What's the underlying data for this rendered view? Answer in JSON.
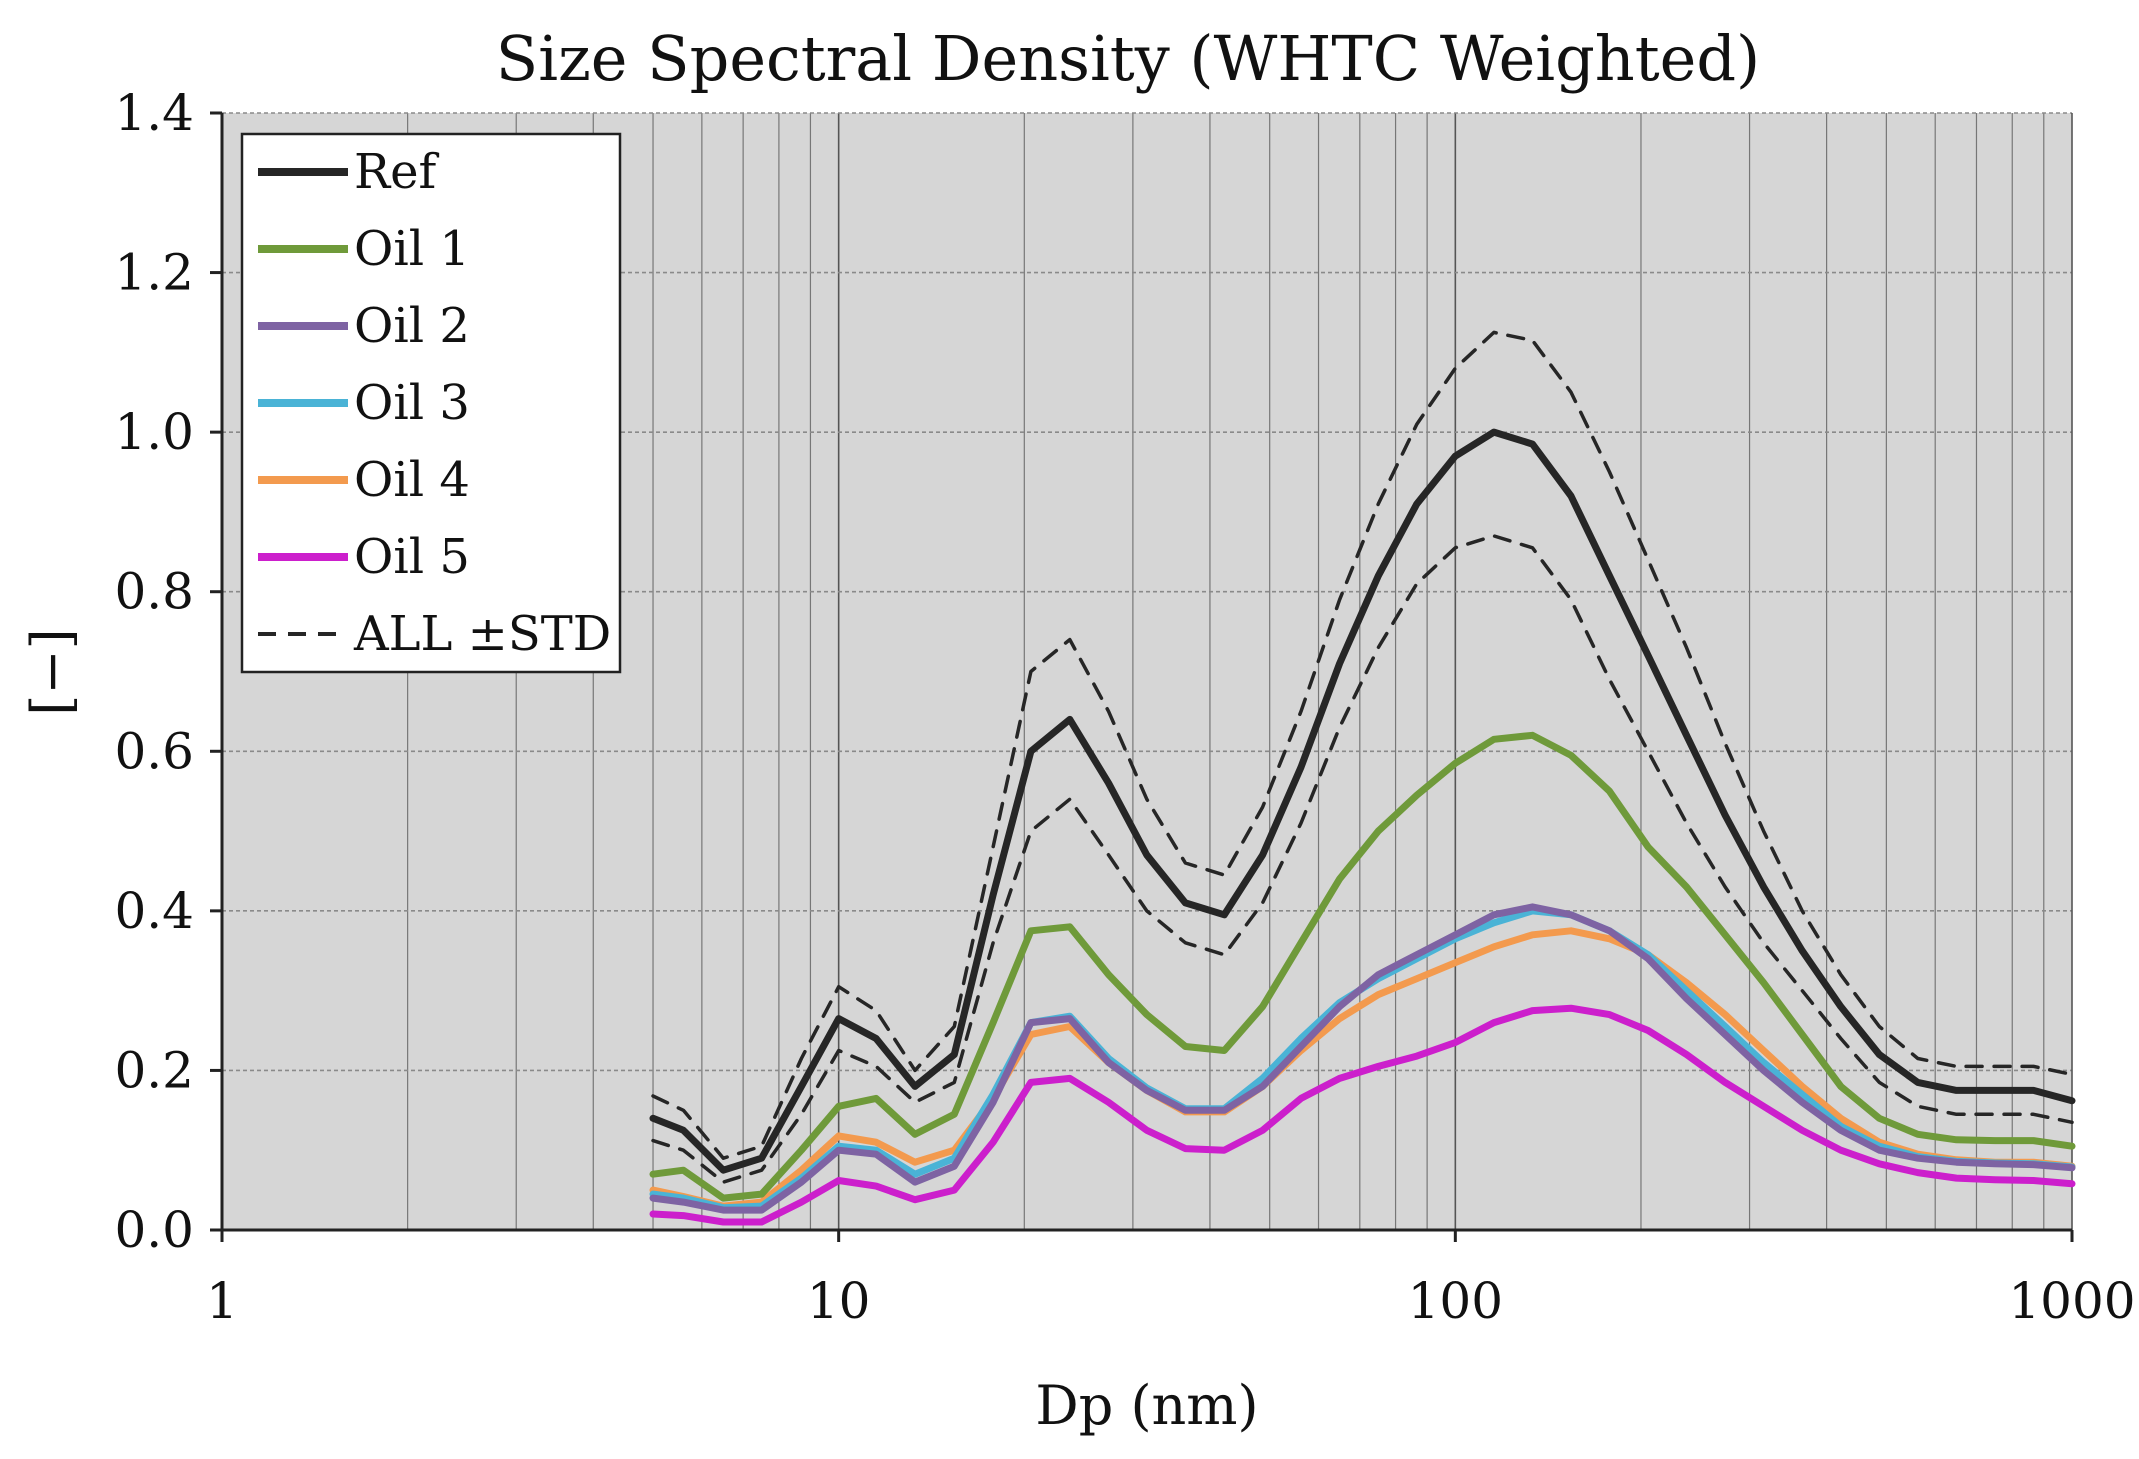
{
  "chart_data": {
    "type": "line",
    "title": "Size Spectral Density (WHTC Weighted)",
    "xlabel": "Dp (nm)",
    "ylabel": "[−]",
    "xscale": "log",
    "xlim": [
      1,
      1000
    ],
    "ylim": [
      0,
      1.4
    ],
    "xticks": [
      "1",
      "10",
      "100",
      "1000"
    ],
    "yticks": [
      "0.0",
      "0.2",
      "0.4",
      "0.6",
      "0.8",
      "1.0",
      "1.2",
      "1.4"
    ],
    "grid": true,
    "legend_position": "top-left",
    "x": [
      5,
      5.6,
      6.5,
      7.5,
      8.7,
      10,
      11.5,
      13.3,
      15.4,
      17.8,
      20.5,
      23.7,
      27.4,
      31.6,
      36.5,
      42.2,
      48.7,
      56.2,
      64.9,
      75,
      86.6,
      100,
      115.5,
      133.4,
      154,
      177.8,
      205.4,
      237.1,
      273.8,
      316.2,
      365.2,
      421.7,
      487,
      562.3,
      649.4,
      750,
      866,
      1000
    ],
    "series": [
      {
        "name": "Ref",
        "color": "#262626",
        "width": 7,
        "dashed": false,
        "values": [
          0.14,
          0.125,
          0.075,
          0.09,
          0.18,
          0.265,
          0.24,
          0.18,
          0.22,
          0.42,
          0.6,
          0.64,
          0.56,
          0.47,
          0.41,
          0.395,
          0.47,
          0.58,
          0.71,
          0.82,
          0.91,
          0.97,
          1.0,
          0.985,
          0.92,
          0.82,
          0.72,
          0.62,
          0.52,
          0.43,
          0.35,
          0.28,
          0.22,
          0.185,
          0.175,
          0.175,
          0.175,
          0.162
        ]
      },
      {
        "name": "Oil 1",
        "color": "#6f9a3a",
        "width": 7,
        "dashed": false,
        "values": [
          0.07,
          0.075,
          0.04,
          0.045,
          0.1,
          0.155,
          0.165,
          0.12,
          0.145,
          0.26,
          0.375,
          0.38,
          0.32,
          0.27,
          0.23,
          0.225,
          0.28,
          0.36,
          0.44,
          0.5,
          0.545,
          0.585,
          0.615,
          0.62,
          0.595,
          0.55,
          0.48,
          0.43,
          0.37,
          0.31,
          0.245,
          0.18,
          0.14,
          0.12,
          0.113,
          0.112,
          0.112,
          0.105
        ]
      },
      {
        "name": "Oil 2",
        "color": "#7e63a3",
        "width": 7,
        "dashed": false,
        "values": [
          0.04,
          0.035,
          0.025,
          0.025,
          0.06,
          0.1,
          0.095,
          0.06,
          0.08,
          0.16,
          0.26,
          0.265,
          0.21,
          0.175,
          0.15,
          0.15,
          0.18,
          0.23,
          0.28,
          0.32,
          0.345,
          0.37,
          0.395,
          0.405,
          0.395,
          0.375,
          0.34,
          0.29,
          0.245,
          0.2,
          0.16,
          0.125,
          0.1,
          0.09,
          0.085,
          0.083,
          0.082,
          0.078
        ]
      },
      {
        "name": "Oil 3",
        "color": "#4ab3d6",
        "width": 7,
        "dashed": false,
        "values": [
          0.045,
          0.04,
          0.028,
          0.03,
          0.065,
          0.105,
          0.1,
          0.07,
          0.09,
          0.17,
          0.26,
          0.268,
          0.215,
          0.178,
          0.152,
          0.152,
          0.19,
          0.24,
          0.285,
          0.315,
          0.34,
          0.365,
          0.385,
          0.4,
          0.395,
          0.375,
          0.345,
          0.3,
          0.255,
          0.21,
          0.17,
          0.13,
          0.105,
          0.092,
          0.086,
          0.084,
          0.083,
          0.079
        ]
      },
      {
        "name": "Oil 4",
        "color": "#f39a4e",
        "width": 7,
        "dashed": false,
        "values": [
          0.05,
          0.042,
          0.03,
          0.035,
          0.075,
          0.118,
          0.11,
          0.085,
          0.1,
          0.165,
          0.245,
          0.255,
          0.21,
          0.175,
          0.148,
          0.148,
          0.18,
          0.225,
          0.265,
          0.295,
          0.315,
          0.335,
          0.355,
          0.37,
          0.375,
          0.365,
          0.345,
          0.31,
          0.27,
          0.225,
          0.18,
          0.14,
          0.11,
          0.095,
          0.088,
          0.085,
          0.085,
          0.08
        ]
      },
      {
        "name": "Oil 5",
        "color": "#cc1fcc",
        "width": 7,
        "dashed": false,
        "values": [
          0.02,
          0.018,
          0.01,
          0.01,
          0.035,
          0.062,
          0.055,
          0.038,
          0.05,
          0.11,
          0.185,
          0.19,
          0.16,
          0.125,
          0.102,
          0.1,
          0.125,
          0.165,
          0.19,
          0.205,
          0.218,
          0.235,
          0.26,
          0.275,
          0.278,
          0.27,
          0.25,
          0.22,
          0.185,
          0.155,
          0.125,
          0.1,
          0.083,
          0.072,
          0.065,
          0.063,
          0.062,
          0.058
        ]
      },
      {
        "name": "ALL ±STD",
        "color": "#262626",
        "width": 3.5,
        "dashed": true,
        "values": [
          0.168,
          0.15,
          0.09,
          0.105,
          0.215,
          0.305,
          0.275,
          0.2,
          0.255,
          0.48,
          0.7,
          0.74,
          0.65,
          0.54,
          0.46,
          0.445,
          0.53,
          0.65,
          0.79,
          0.91,
          1.01,
          1.08,
          1.125,
          1.115,
          1.05,
          0.95,
          0.84,
          0.73,
          0.61,
          0.5,
          0.4,
          0.32,
          0.255,
          0.215,
          0.205,
          0.205,
          0.205,
          0.195
        ]
      },
      {
        "name": "ALL −STD",
        "color": "#262626",
        "width": 3.5,
        "dashed": true,
        "in_legend": false,
        "values": [
          0.112,
          0.1,
          0.06,
          0.075,
          0.145,
          0.225,
          0.205,
          0.16,
          0.185,
          0.36,
          0.5,
          0.54,
          0.47,
          0.4,
          0.36,
          0.345,
          0.41,
          0.51,
          0.63,
          0.73,
          0.81,
          0.855,
          0.87,
          0.855,
          0.79,
          0.69,
          0.6,
          0.51,
          0.43,
          0.36,
          0.3,
          0.24,
          0.185,
          0.155,
          0.145,
          0.145,
          0.145,
          0.135
        ]
      }
    ]
  }
}
